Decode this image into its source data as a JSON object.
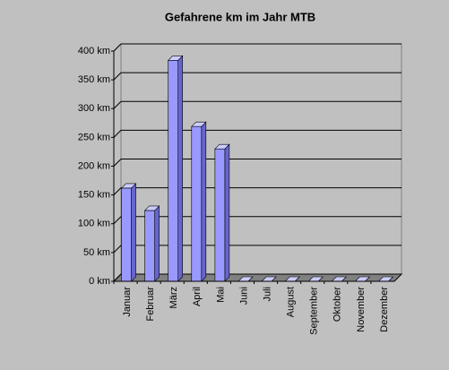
{
  "chart_data": {
    "type": "bar",
    "title": "Gefahrene km im Jahr MTB",
    "categories": [
      "Januar",
      "Februar",
      "März",
      "April",
      "Mai",
      "Juni",
      "Juli",
      "August",
      "September",
      "Oktober",
      "November",
      "Dezember"
    ],
    "values": [
      162,
      123,
      384,
      269,
      230,
      0,
      0,
      0,
      0,
      0,
      0,
      0
    ],
    "color": "#9999ff",
    "ylim": [
      0,
      400
    ],
    "yticks": [
      {
        "value": 0,
        "label": "0 km"
      },
      {
        "value": 50,
        "label": "50 km"
      },
      {
        "value": 100,
        "label": "100 km"
      },
      {
        "value": 150,
        "label": "150 km"
      },
      {
        "value": 200,
        "label": "200 km"
      },
      {
        "value": 250,
        "label": "250 km"
      },
      {
        "value": 300,
        "label": "300 km"
      },
      {
        "value": 350,
        "label": "350 km"
      },
      {
        "value": 400,
        "label": "400 km"
      }
    ],
    "grid": true
  }
}
